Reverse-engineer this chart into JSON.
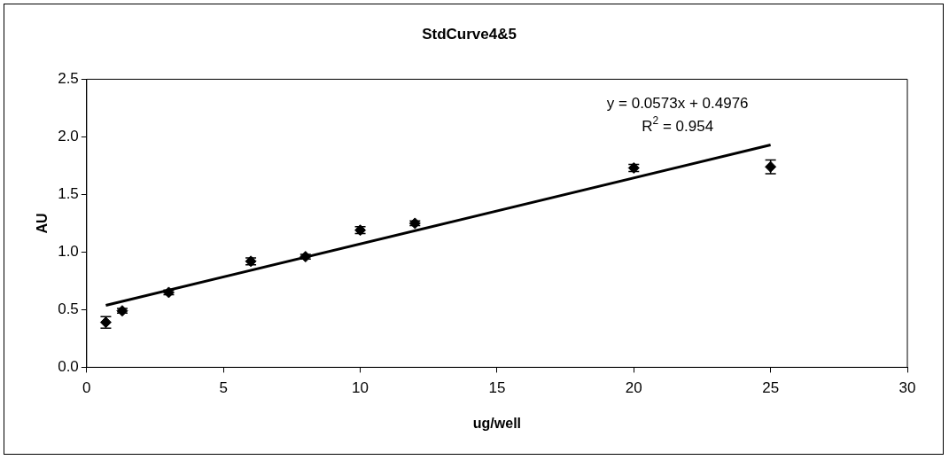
{
  "chart_data": {
    "type": "scatter",
    "title": "StdCurve4&5",
    "xlabel": "ug/well",
    "ylabel": "AU",
    "xlim": [
      0,
      30
    ],
    "xticks": [
      0,
      5,
      10,
      15,
      20,
      25,
      30
    ],
    "ylim": [
      0,
      2.5
    ],
    "yticks": [
      {
        "value": 0,
        "label": "0.0"
      },
      {
        "value": 0.5,
        "label": "0.5"
      },
      {
        "value": 1,
        "label": "1.0"
      },
      {
        "value": 1.5,
        "label": "1.5"
      },
      {
        "value": 2,
        "label": "2.0"
      },
      {
        "value": 2.5,
        "label": "2.5"
      }
    ],
    "grid": false,
    "legend": false,
    "marker": "diamond",
    "series": [
      {
        "type": "scatter",
        "color": "#000000",
        "x": [
          0.7,
          1.3,
          3,
          6,
          8,
          10,
          12,
          20,
          25
        ],
        "values": [
          0.39,
          0.49,
          0.65,
          0.92,
          0.96,
          1.19,
          1.25,
          1.73,
          1.74
        ],
        "errors": [
          0.05,
          0.02,
          0.02,
          0.03,
          0.02,
          0.03,
          0.02,
          0.03,
          0.06
        ]
      },
      {
        "type": "line",
        "color": "#000000",
        "x": [
          0.7,
          25
        ],
        "values": [
          0.538,
          1.93
        ],
        "marker": "none",
        "line_style": "solid"
      }
    ],
    "annotations": [
      "y = 0.0573x + 0.4976",
      "R$^{2}$ = 0.954"
    ]
  }
}
